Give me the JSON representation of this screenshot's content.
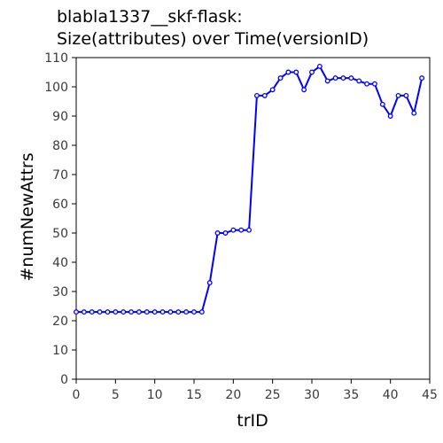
{
  "chart_data": {
    "type": "line",
    "title_line1": "blabla1337__skf-flask:",
    "title_line2": "Size(attributes) over Time(versionID)",
    "xlabel": "trID",
    "ylabel": "#numNewAttrs",
    "xlim": [
      0,
      45
    ],
    "ylim": [
      0,
      110
    ],
    "x_ticks": [
      0,
      5,
      10,
      15,
      20,
      25,
      30,
      35,
      40,
      45
    ],
    "y_ticks": [
      0,
      10,
      20,
      30,
      40,
      50,
      60,
      70,
      80,
      90,
      100,
      110
    ],
    "grid": false,
    "series_color": "#0000ff",
    "x": [
      0,
      1,
      2,
      3,
      4,
      5,
      6,
      7,
      8,
      9,
      10,
      11,
      12,
      13,
      14,
      15,
      16,
      17,
      18,
      19,
      20,
      21,
      22,
      23,
      24,
      25,
      26,
      27,
      28,
      29,
      30,
      31,
      32,
      33,
      34,
      35,
      36,
      37,
      38,
      39,
      40,
      41,
      42,
      43,
      44
    ],
    "values": [
      23,
      23,
      23,
      23,
      23,
      23,
      23,
      23,
      23,
      23,
      23,
      23,
      23,
      23,
      23,
      23,
      23,
      33,
      50,
      50,
      51,
      51,
      51,
      97,
      97,
      99,
      103,
      105,
      105,
      99,
      105,
      107,
      102,
      103,
      103,
      103,
      102,
      101,
      101,
      94,
      90,
      97,
      97,
      91,
      103
    ]
  }
}
